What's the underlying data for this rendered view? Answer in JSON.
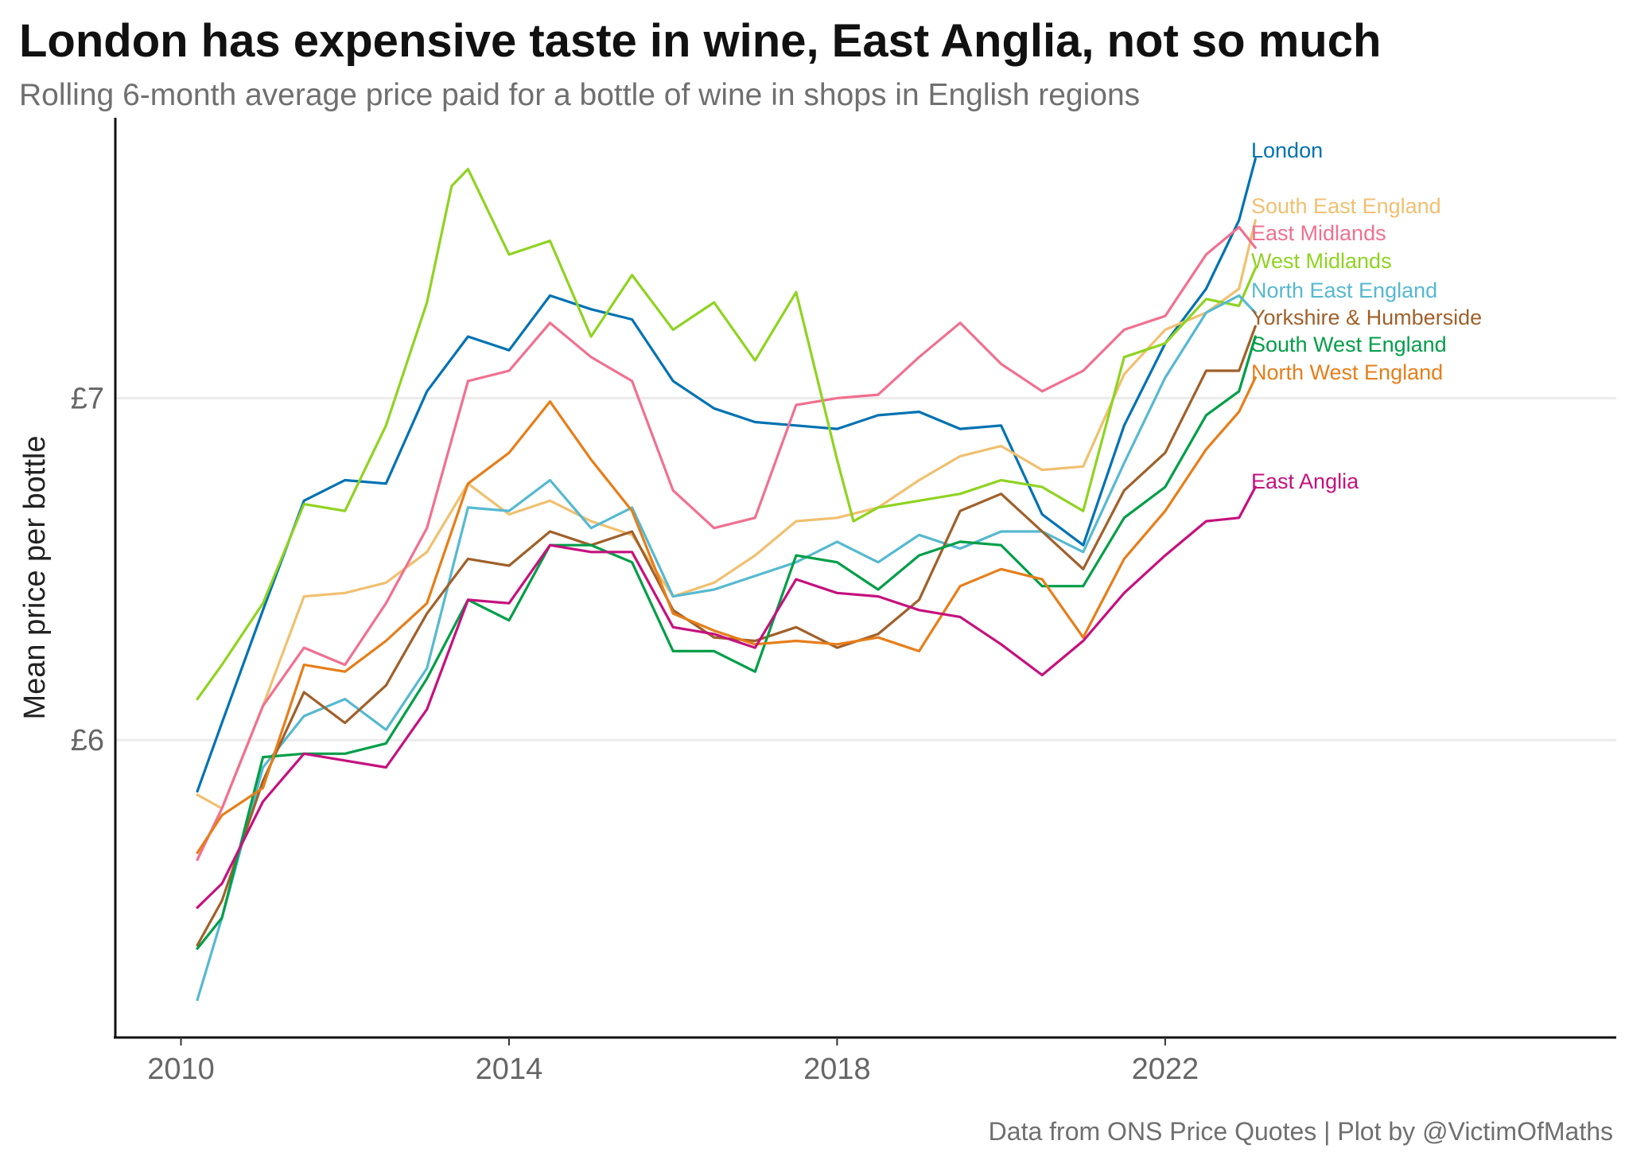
{
  "header": {
    "title": "London has expensive taste in wine, East Anglia, not so much",
    "subtitle": "Rolling 6-month average price paid for a bottle of wine in shops in English regions"
  },
  "footer": {
    "caption": "Data from ONS Price Quotes | Plot by @VictimOfMaths"
  },
  "chart_data": {
    "type": "line",
    "title": "London has expensive taste in wine, East Anglia, not so much",
    "subtitle": "Rolling 6-month average price paid for a bottle of wine in shops in English regions",
    "xlabel": "",
    "ylabel": "Mean price per bottle",
    "x_ticks": [
      "2010",
      "2014",
      "2018",
      "2022"
    ],
    "y_ticks": [
      {
        "value": 6,
        "label": "£6"
      },
      {
        "value": 7,
        "label": "£7"
      }
    ],
    "xlim": [
      2009.2,
      2027.5
    ],
    "ylim": [
      5.13,
      7.82
    ],
    "grid": "horizontal major",
    "legend": "direct labels at line ends (right)",
    "series": [
      {
        "name": "London",
        "color": "#0072b2",
        "points": [
          [
            2010.2,
            5.85
          ],
          [
            2010.5,
            6.05
          ],
          [
            2011.0,
            6.38
          ],
          [
            2011.5,
            6.7
          ],
          [
            2012.0,
            6.76
          ],
          [
            2012.5,
            6.75
          ],
          [
            2013.0,
            7.02
          ],
          [
            2013.5,
            7.18
          ],
          [
            2014.0,
            7.14
          ],
          [
            2014.5,
            7.3
          ],
          [
            2015.0,
            7.26
          ],
          [
            2015.5,
            7.23
          ],
          [
            2016.0,
            7.05
          ],
          [
            2016.5,
            6.97
          ],
          [
            2017.0,
            6.93
          ],
          [
            2017.5,
            6.92
          ],
          [
            2018.0,
            6.91
          ],
          [
            2018.5,
            6.95
          ],
          [
            2019.0,
            6.96
          ],
          [
            2019.5,
            6.91
          ],
          [
            2020.0,
            6.92
          ],
          [
            2020.5,
            6.66
          ],
          [
            2021.0,
            6.57
          ],
          [
            2021.5,
            6.92
          ],
          [
            2022.0,
            7.16
          ],
          [
            2022.5,
            7.32
          ],
          [
            2022.9,
            7.52
          ],
          [
            2023.1,
            7.7
          ]
        ]
      },
      {
        "name": "South East England",
        "color": "#f0c070",
        "points": [
          [
            2010.2,
            5.84
          ],
          [
            2010.5,
            5.8
          ],
          [
            2011.0,
            6.1
          ],
          [
            2011.5,
            6.42
          ],
          [
            2012.0,
            6.43
          ],
          [
            2012.5,
            6.46
          ],
          [
            2013.0,
            6.55
          ],
          [
            2013.5,
            6.75
          ],
          [
            2014.0,
            6.66
          ],
          [
            2014.5,
            6.7
          ],
          [
            2015.0,
            6.64
          ],
          [
            2015.5,
            6.6
          ],
          [
            2016.0,
            6.42
          ],
          [
            2016.5,
            6.46
          ],
          [
            2017.0,
            6.54
          ],
          [
            2017.5,
            6.64
          ],
          [
            2018.0,
            6.65
          ],
          [
            2018.5,
            6.68
          ],
          [
            2019.0,
            6.76
          ],
          [
            2019.5,
            6.83
          ],
          [
            2020.0,
            6.86
          ],
          [
            2020.5,
            6.79
          ],
          [
            2021.0,
            6.8
          ],
          [
            2021.5,
            7.07
          ],
          [
            2022.0,
            7.2
          ],
          [
            2022.5,
            7.25
          ],
          [
            2022.9,
            7.32
          ],
          [
            2023.1,
            7.52
          ]
        ]
      },
      {
        "name": "East Midlands",
        "color": "#f07090",
        "points": [
          [
            2010.2,
            5.65
          ],
          [
            2010.5,
            5.8
          ],
          [
            2011.0,
            6.1
          ],
          [
            2011.5,
            6.27
          ],
          [
            2012.0,
            6.22
          ],
          [
            2012.5,
            6.4
          ],
          [
            2013.0,
            6.62
          ],
          [
            2013.5,
            7.05
          ],
          [
            2014.0,
            7.08
          ],
          [
            2014.5,
            7.22
          ],
          [
            2015.0,
            7.12
          ],
          [
            2015.5,
            7.05
          ],
          [
            2016.0,
            6.73
          ],
          [
            2016.5,
            6.62
          ],
          [
            2017.0,
            6.65
          ],
          [
            2017.5,
            6.98
          ],
          [
            2018.0,
            7.0
          ],
          [
            2018.5,
            7.01
          ],
          [
            2019.0,
            7.12
          ],
          [
            2019.5,
            7.22
          ],
          [
            2020.0,
            7.1
          ],
          [
            2020.5,
            7.02
          ],
          [
            2021.0,
            7.08
          ],
          [
            2021.5,
            7.2
          ],
          [
            2022.0,
            7.24
          ],
          [
            2022.5,
            7.42
          ],
          [
            2022.9,
            7.5
          ],
          [
            2023.1,
            7.44
          ]
        ]
      },
      {
        "name": "West Midlands",
        "color": "#8fd321",
        "points": [
          [
            2010.2,
            6.12
          ],
          [
            2010.5,
            6.22
          ],
          [
            2011.0,
            6.4
          ],
          [
            2011.5,
            6.69
          ],
          [
            2012.0,
            6.67
          ],
          [
            2012.5,
            6.92
          ],
          [
            2013.0,
            7.28
          ],
          [
            2013.3,
            7.62
          ],
          [
            2013.5,
            7.67
          ],
          [
            2014.0,
            7.42
          ],
          [
            2014.5,
            7.46
          ],
          [
            2015.0,
            7.18
          ],
          [
            2015.5,
            7.36
          ],
          [
            2016.0,
            7.2
          ],
          [
            2016.5,
            7.28
          ],
          [
            2017.0,
            7.11
          ],
          [
            2017.5,
            7.31
          ],
          [
            2018.0,
            6.82
          ],
          [
            2018.2,
            6.64
          ],
          [
            2018.5,
            6.68
          ],
          [
            2019.0,
            6.7
          ],
          [
            2019.5,
            6.72
          ],
          [
            2020.0,
            6.76
          ],
          [
            2020.5,
            6.74
          ],
          [
            2021.0,
            6.67
          ],
          [
            2021.5,
            7.12
          ],
          [
            2022.0,
            7.16
          ],
          [
            2022.5,
            7.29
          ],
          [
            2022.9,
            7.27
          ],
          [
            2023.1,
            7.38
          ]
        ]
      },
      {
        "name": "North East England",
        "color": "#56b9d0",
        "points": [
          [
            2010.2,
            5.24
          ],
          [
            2010.5,
            5.48
          ],
          [
            2011.0,
            5.92
          ],
          [
            2011.5,
            6.07
          ],
          [
            2012.0,
            6.12
          ],
          [
            2012.5,
            6.03
          ],
          [
            2013.0,
            6.21
          ],
          [
            2013.5,
            6.68
          ],
          [
            2014.0,
            6.67
          ],
          [
            2014.5,
            6.76
          ],
          [
            2015.0,
            6.62
          ],
          [
            2015.5,
            6.68
          ],
          [
            2016.0,
            6.42
          ],
          [
            2016.5,
            6.44
          ],
          [
            2017.0,
            6.48
          ],
          [
            2017.5,
            6.52
          ],
          [
            2018.0,
            6.58
          ],
          [
            2018.5,
            6.52
          ],
          [
            2019.0,
            6.6
          ],
          [
            2019.5,
            6.56
          ],
          [
            2020.0,
            6.61
          ],
          [
            2020.5,
            6.61
          ],
          [
            2021.0,
            6.55
          ],
          [
            2021.5,
            6.81
          ],
          [
            2022.0,
            7.06
          ],
          [
            2022.5,
            7.25
          ],
          [
            2022.9,
            7.3
          ],
          [
            2023.1,
            7.25
          ]
        ]
      },
      {
        "name": "Yorkshire & Humberside",
        "color": "#a0602a",
        "points": [
          [
            2010.2,
            5.4
          ],
          [
            2010.5,
            5.53
          ],
          [
            2011.0,
            5.88
          ],
          [
            2011.5,
            6.14
          ],
          [
            2012.0,
            6.05
          ],
          [
            2012.5,
            6.16
          ],
          [
            2013.0,
            6.37
          ],
          [
            2013.5,
            6.53
          ],
          [
            2014.0,
            6.51
          ],
          [
            2014.5,
            6.61
          ],
          [
            2015.0,
            6.57
          ],
          [
            2015.5,
            6.61
          ],
          [
            2016.0,
            6.38
          ],
          [
            2016.5,
            6.3
          ],
          [
            2017.0,
            6.29
          ],
          [
            2017.5,
            6.33
          ],
          [
            2018.0,
            6.27
          ],
          [
            2018.5,
            6.31
          ],
          [
            2019.0,
            6.41
          ],
          [
            2019.5,
            6.67
          ],
          [
            2020.0,
            6.72
          ],
          [
            2020.5,
            6.61
          ],
          [
            2021.0,
            6.5
          ],
          [
            2021.5,
            6.73
          ],
          [
            2022.0,
            6.84
          ],
          [
            2022.5,
            7.08
          ],
          [
            2022.9,
            7.08
          ],
          [
            2023.1,
            7.21
          ]
        ]
      },
      {
        "name": "South West England",
        "color": "#009e48",
        "points": [
          [
            2010.2,
            5.39
          ],
          [
            2010.5,
            5.48
          ],
          [
            2011.0,
            5.95
          ],
          [
            2011.5,
            5.96
          ],
          [
            2012.0,
            5.96
          ],
          [
            2012.5,
            5.99
          ],
          [
            2013.0,
            6.18
          ],
          [
            2013.5,
            6.41
          ],
          [
            2014.0,
            6.35
          ],
          [
            2014.5,
            6.57
          ],
          [
            2015.0,
            6.57
          ],
          [
            2015.5,
            6.52
          ],
          [
            2016.0,
            6.26
          ],
          [
            2016.5,
            6.26
          ],
          [
            2017.0,
            6.2
          ],
          [
            2017.5,
            6.54
          ],
          [
            2018.0,
            6.52
          ],
          [
            2018.5,
            6.44
          ],
          [
            2019.0,
            6.54
          ],
          [
            2019.5,
            6.58
          ],
          [
            2020.0,
            6.57
          ],
          [
            2020.5,
            6.45
          ],
          [
            2021.0,
            6.45
          ],
          [
            2021.5,
            6.65
          ],
          [
            2022.0,
            6.74
          ],
          [
            2022.5,
            6.95
          ],
          [
            2022.9,
            7.02
          ],
          [
            2023.1,
            7.18
          ]
        ]
      },
      {
        "name": "North West England",
        "color": "#e67e1a",
        "points": [
          [
            2010.2,
            5.67
          ],
          [
            2010.5,
            5.78
          ],
          [
            2011.0,
            5.86
          ],
          [
            2011.5,
            6.22
          ],
          [
            2012.0,
            6.2
          ],
          [
            2012.5,
            6.29
          ],
          [
            2013.0,
            6.4
          ],
          [
            2013.5,
            6.75
          ],
          [
            2014.0,
            6.84
          ],
          [
            2014.5,
            6.99
          ],
          [
            2015.0,
            6.82
          ],
          [
            2015.5,
            6.67
          ],
          [
            2016.0,
            6.37
          ],
          [
            2016.5,
            6.32
          ],
          [
            2017.0,
            6.28
          ],
          [
            2017.5,
            6.29
          ],
          [
            2018.0,
            6.28
          ],
          [
            2018.5,
            6.3
          ],
          [
            2019.0,
            6.26
          ],
          [
            2019.5,
            6.45
          ],
          [
            2020.0,
            6.5
          ],
          [
            2020.5,
            6.47
          ],
          [
            2021.0,
            6.3
          ],
          [
            2021.5,
            6.53
          ],
          [
            2022.0,
            6.67
          ],
          [
            2022.5,
            6.85
          ],
          [
            2022.9,
            6.96
          ],
          [
            2023.1,
            7.06
          ]
        ]
      },
      {
        "name": "East Anglia",
        "color": "#c5117e",
        "points": [
          [
            2010.2,
            5.51
          ],
          [
            2010.5,
            5.58
          ],
          [
            2011.0,
            5.82
          ],
          [
            2011.5,
            5.96
          ],
          [
            2012.0,
            5.94
          ],
          [
            2012.5,
            5.92
          ],
          [
            2013.0,
            6.09
          ],
          [
            2013.5,
            6.41
          ],
          [
            2014.0,
            6.4
          ],
          [
            2014.5,
            6.57
          ],
          [
            2015.0,
            6.55
          ],
          [
            2015.5,
            6.55
          ],
          [
            2016.0,
            6.33
          ],
          [
            2016.5,
            6.31
          ],
          [
            2017.0,
            6.27
          ],
          [
            2017.5,
            6.47
          ],
          [
            2018.0,
            6.43
          ],
          [
            2018.5,
            6.42
          ],
          [
            2019.0,
            6.38
          ],
          [
            2019.5,
            6.36
          ],
          [
            2020.0,
            6.28
          ],
          [
            2020.5,
            6.19
          ],
          [
            2021.0,
            6.29
          ],
          [
            2021.5,
            6.43
          ],
          [
            2022.0,
            6.54
          ],
          [
            2022.5,
            6.64
          ],
          [
            2022.9,
            6.65
          ],
          [
            2023.1,
            6.74
          ]
        ]
      }
    ]
  }
}
